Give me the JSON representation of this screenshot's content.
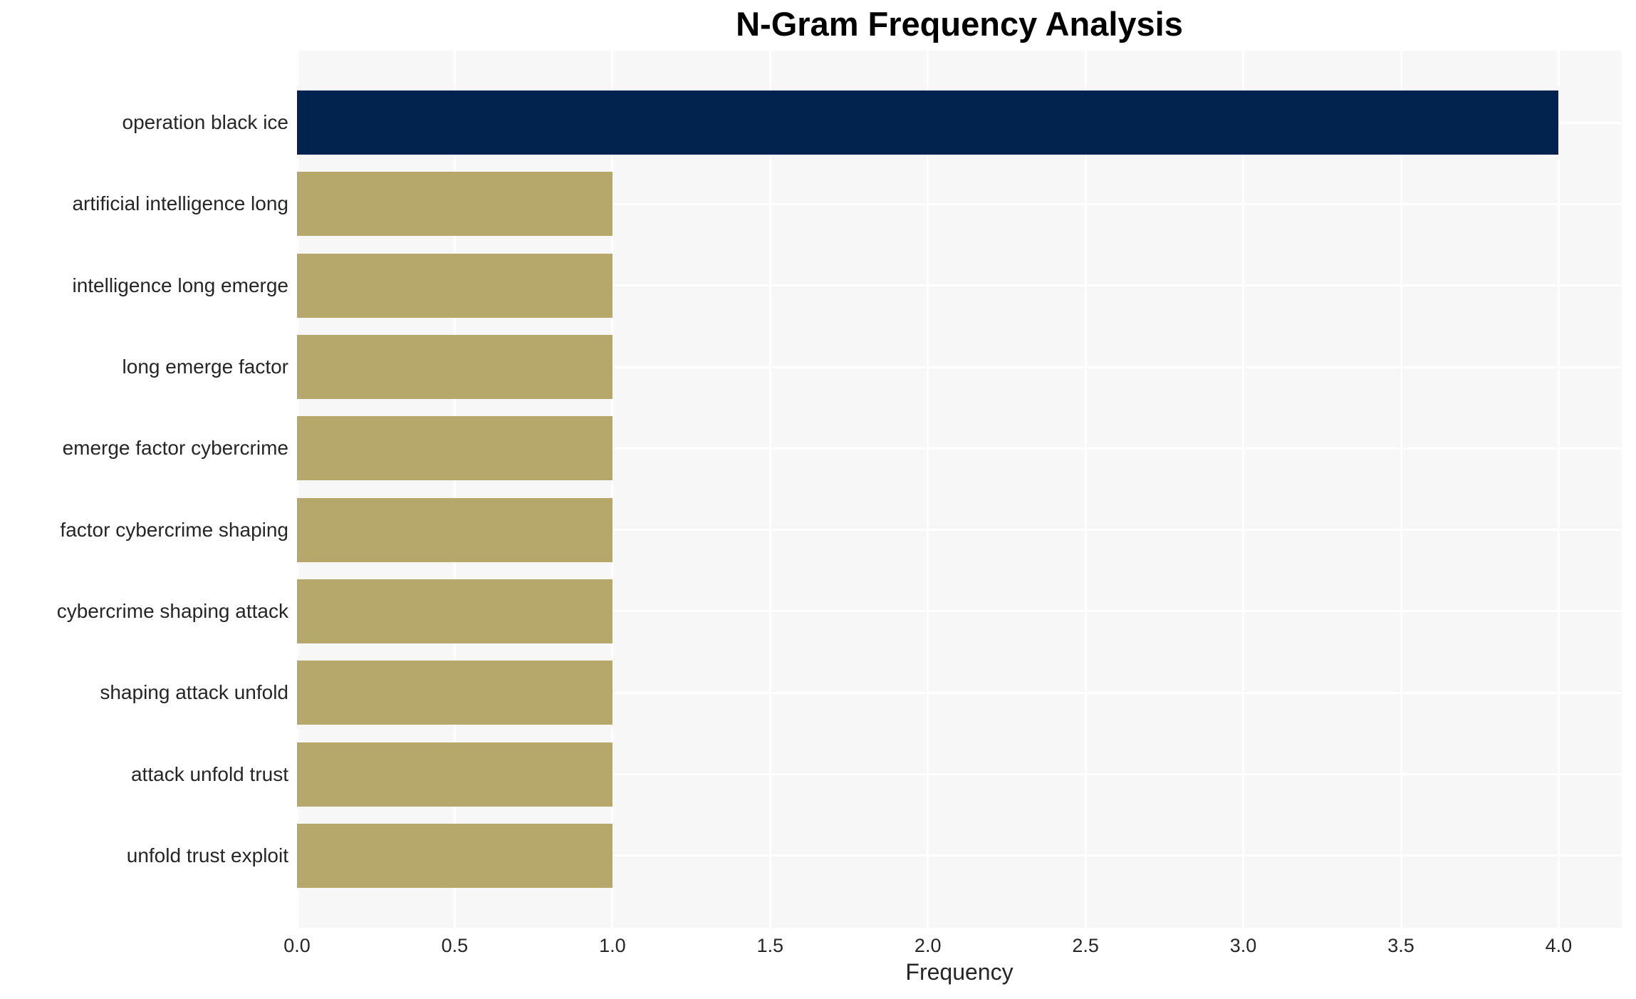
{
  "chart_data": {
    "type": "bar",
    "orientation": "horizontal",
    "title": "N-Gram Frequency Analysis",
    "xlabel": "Frequency",
    "ylabel": "",
    "categories": [
      "operation black ice",
      "artificial intelligence long",
      "intelligence long emerge",
      "long emerge factor",
      "emerge factor cybercrime",
      "factor cybercrime shaping",
      "cybercrime shaping attack",
      "shaping attack unfold",
      "attack unfold trust",
      "unfold trust exploit"
    ],
    "values": [
      4,
      1,
      1,
      1,
      1,
      1,
      1,
      1,
      1,
      1
    ],
    "xlim": [
      0,
      4.2
    ],
    "xticks": [
      0.0,
      0.5,
      1.0,
      1.5,
      2.0,
      2.5,
      3.0,
      3.5,
      4.0
    ],
    "xtick_labels": [
      "0.0",
      "0.5",
      "1.0",
      "1.5",
      "2.0",
      "2.5",
      "3.0",
      "3.5",
      "4.0"
    ],
    "grid": true,
    "legend_position": "none",
    "colors": {
      "highlight_bar": "#02234e",
      "default_bar": "#b6a86a",
      "plot_background": "#f7f7f7",
      "gridline": "#ffffff",
      "tick_text": "#262626",
      "title_text": "#000000"
    },
    "bar_colors": [
      "#02234e",
      "#b6a86a",
      "#b6a86a",
      "#b6a86a",
      "#b6a86a",
      "#b6a86a",
      "#b6a86a",
      "#b6a86a",
      "#b6a86a",
      "#b6a86a"
    ]
  }
}
